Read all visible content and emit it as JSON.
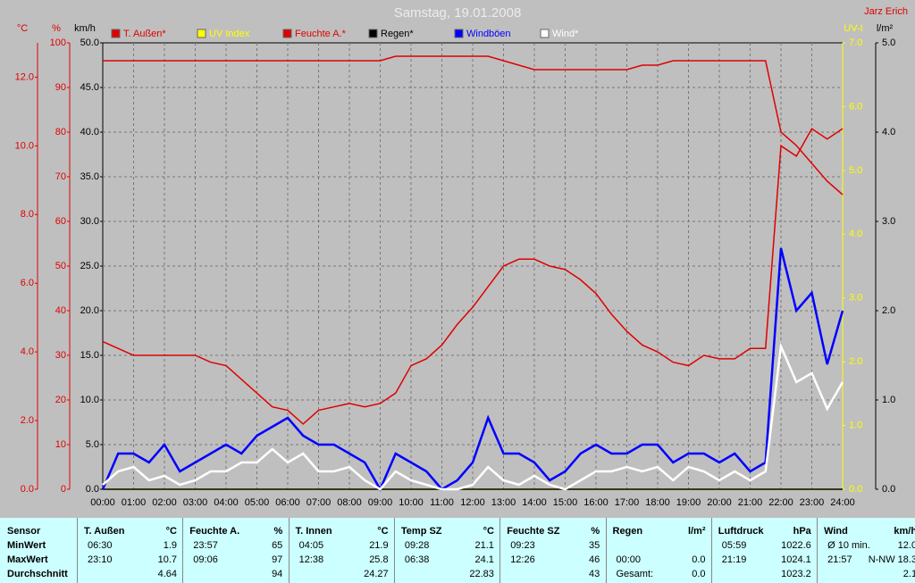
{
  "chart_data": {
    "type": "line",
    "title": "Samstag, 19.01.2008",
    "author": "Jarz Erich",
    "xlim": [
      0,
      24
    ],
    "xticks": [
      {
        "value": 0,
        "label": "00:00"
      },
      {
        "value": 1,
        "label": "01:00"
      },
      {
        "value": 2,
        "label": "02:00"
      },
      {
        "value": 3,
        "label": "03:00"
      },
      {
        "value": 4,
        "label": "04:00"
      },
      {
        "value": 5,
        "label": "05:00"
      },
      {
        "value": 6,
        "label": "06:00"
      },
      {
        "value": 7,
        "label": "07:00"
      },
      {
        "value": 8,
        "label": "08:00"
      },
      {
        "value": 9,
        "label": "09:00"
      },
      {
        "value": 10,
        "label": "10:00"
      },
      {
        "value": 11,
        "label": "11:00"
      },
      {
        "value": 12,
        "label": "12:00"
      },
      {
        "value": 13,
        "label": "13:00"
      },
      {
        "value": 14,
        "label": "14:00"
      },
      {
        "value": 15,
        "label": "15:00"
      },
      {
        "value": 16,
        "label": "16:00"
      },
      {
        "value": 17,
        "label": "17:00"
      },
      {
        "value": 18,
        "label": "18:00"
      },
      {
        "value": 19,
        "label": "19:00"
      },
      {
        "value": 20,
        "label": "20:00"
      },
      {
        "value": 21,
        "label": "21:00"
      },
      {
        "value": 22,
        "label": "22:00"
      },
      {
        "value": 23,
        "label": "23:00"
      },
      {
        "value": 24,
        "label": "24:00"
      }
    ],
    "axes": [
      {
        "unit": "°C",
        "color": "#e00000",
        "lim": [
          0,
          13
        ],
        "ticks": [
          {
            "value": 0,
            "label": "0.0"
          },
          {
            "value": 2,
            "label": "2.0"
          },
          {
            "value": 4,
            "label": "4.0"
          },
          {
            "value": 6,
            "label": "6.0"
          },
          {
            "value": 8,
            "label": "8.0"
          },
          {
            "value": 10,
            "label": "10.0"
          },
          {
            "value": 12,
            "label": "12.0"
          }
        ]
      },
      {
        "unit": "%",
        "color": "#e00000",
        "lim": [
          0,
          100
        ],
        "ticks": [
          0,
          10,
          20,
          30,
          40,
          50,
          60,
          70,
          80,
          90,
          100
        ]
      },
      {
        "unit": "km/h",
        "color": "#000000",
        "lim": [
          0,
          50
        ],
        "ticks": [
          {
            "value": 0,
            "label": "0.0"
          },
          {
            "value": 5,
            "label": "5.0"
          },
          {
            "value": 10,
            "label": "10.0"
          },
          {
            "value": 15,
            "label": "15.0"
          },
          {
            "value": 20,
            "label": "20.0"
          },
          {
            "value": 25,
            "label": "25.0"
          },
          {
            "value": 30,
            "label": "30.0"
          },
          {
            "value": 35,
            "label": "35.0"
          },
          {
            "value": 40,
            "label": "40.0"
          },
          {
            "value": 45,
            "label": "45.0"
          },
          {
            "value": 50,
            "label": "50.0"
          }
        ],
        "grid": true
      },
      {
        "unit": "UV-I",
        "color": "#ffff00",
        "lim": [
          0,
          7
        ],
        "ticks": [
          {
            "value": 0,
            "label": "0.0"
          },
          {
            "value": 1,
            "label": "1.0"
          },
          {
            "value": 2,
            "label": "2.0"
          },
          {
            "value": 3,
            "label": "3.0"
          },
          {
            "value": 4,
            "label": "4.0"
          },
          {
            "value": 5,
            "label": "5.0"
          },
          {
            "value": 6,
            "label": "6.0"
          },
          {
            "value": 7,
            "label": "7.0"
          }
        ]
      },
      {
        "unit": "l/m²",
        "color": "#000000",
        "lim": [
          0,
          5
        ],
        "ticks": [
          {
            "value": 0,
            "label": "0.0"
          },
          {
            "value": 1,
            "label": "1.0"
          },
          {
            "value": 2,
            "label": "2.0"
          },
          {
            "value": 3,
            "label": "3.0"
          },
          {
            "value": 4,
            "label": "4.0"
          },
          {
            "value": 5,
            "label": "5.0"
          }
        ]
      }
    ],
    "x": [
      0,
      0.5,
      1,
      1.5,
      2,
      2.5,
      3,
      3.5,
      4,
      4.5,
      5,
      5.5,
      6,
      6.5,
      7,
      7.5,
      8,
      8.5,
      9,
      9.5,
      10,
      10.5,
      11,
      11.5,
      12,
      12.5,
      13,
      13.5,
      14,
      14.5,
      15,
      15.5,
      16,
      16.5,
      17,
      17.5,
      18,
      18.5,
      19,
      19.5,
      20,
      20.5,
      21,
      21.5,
      22,
      22.5,
      23,
      23.5,
      24
    ],
    "series": [
      {
        "name": "T. Außen*",
        "color": "#e00000",
        "axis": 0,
        "values": [
          4.3,
          4.1,
          3.9,
          3.9,
          3.9,
          3.9,
          3.9,
          3.7,
          3.6,
          3.2,
          2.8,
          2.4,
          2.3,
          1.9,
          2.3,
          2.4,
          2.5,
          2.4,
          2.5,
          2.8,
          3.6,
          3.8,
          4.2,
          4.8,
          5.3,
          5.9,
          6.5,
          6.7,
          6.7,
          6.5,
          6.4,
          6.1,
          5.7,
          5.1,
          4.6,
          4.2,
          4.0,
          3.7,
          3.6,
          3.9,
          3.8,
          3.8,
          4.1,
          4.1,
          10.0,
          9.7,
          10.5,
          10.2,
          10.5
        ]
      },
      {
        "name": "UV Index",
        "color": "#ffff00",
        "axis": 3,
        "values": [
          0,
          0,
          0,
          0,
          0,
          0,
          0,
          0,
          0,
          0,
          0,
          0,
          0,
          0,
          0,
          0,
          0,
          0,
          0,
          0,
          0,
          0,
          0,
          0,
          0,
          0,
          0,
          0,
          0,
          0,
          0,
          0,
          0,
          0,
          0,
          0,
          0,
          0,
          0,
          0,
          0,
          0,
          0,
          0,
          0,
          0,
          0,
          0,
          0
        ]
      },
      {
        "name": "Feuchte A.*",
        "color": "#e00000",
        "axis": 1,
        "values": [
          96,
          96,
          96,
          96,
          96,
          96,
          96,
          96,
          96,
          96,
          96,
          96,
          96,
          96,
          96,
          96,
          96,
          96,
          96,
          97,
          97,
          97,
          97,
          97,
          97,
          97,
          96,
          95,
          94,
          94,
          94,
          94,
          94,
          94,
          94,
          95,
          95,
          96,
          96,
          96,
          96,
          96,
          96,
          96,
          80,
          77,
          73,
          69,
          66
        ]
      },
      {
        "name": "Regen*",
        "color": "#000000",
        "axis": 4,
        "values": [
          0,
          0,
          0,
          0,
          0,
          0,
          0,
          0,
          0,
          0,
          0,
          0,
          0,
          0,
          0,
          0,
          0,
          0,
          0,
          0,
          0,
          0,
          0,
          0,
          0,
          0,
          0,
          0,
          0,
          0,
          0,
          0,
          0,
          0,
          0,
          0,
          0,
          0,
          0,
          0,
          0,
          0,
          0,
          0,
          0,
          0,
          0,
          0,
          0
        ]
      },
      {
        "name": "Windböen",
        "color": "#0000ff",
        "axis": 2,
        "values": [
          0,
          4,
          4,
          3,
          5,
          2,
          3,
          4,
          5,
          4,
          6,
          7,
          8,
          6,
          5,
          5,
          4,
          3,
          0,
          4,
          3,
          2,
          0,
          1,
          3,
          8,
          4,
          4,
          3,
          1,
          2,
          4,
          5,
          4,
          4,
          5,
          5,
          3,
          4,
          4,
          3,
          4,
          2,
          3,
          27,
          20,
          22,
          14,
          20
        ]
      },
      {
        "name": "Wind*",
        "color": "#ffffff",
        "axis": 2,
        "values": [
          0.5,
          2,
          2.5,
          1,
          1.5,
          0.5,
          1,
          2,
          2,
          3,
          3,
          4.5,
          3,
          4,
          2,
          2,
          2.5,
          1,
          0,
          2,
          1,
          0.5,
          0,
          0,
          0.5,
          2.5,
          1,
          0.5,
          1.5,
          0.5,
          0,
          1,
          2,
          2,
          2.5,
          2,
          2.5,
          1,
          2.5,
          2,
          1,
          2,
          1,
          2,
          16,
          12,
          13,
          9,
          12
        ]
      }
    ]
  },
  "stats": {
    "row_labels": [
      "Sensor",
      "MinWert",
      "MaxWert",
      "Durchschnitt"
    ],
    "groups": [
      {
        "name": "T. Außen",
        "unit": "°C",
        "rows": [
          [
            "06:30",
            "1.9"
          ],
          [
            "23:10",
            "10.7"
          ],
          [
            null,
            "4.64"
          ]
        ]
      },
      {
        "name": "Feuchte A.",
        "unit": "%",
        "rows": [
          [
            "23:57",
            "65"
          ],
          [
            "09:06",
            "97"
          ],
          [
            null,
            "94"
          ]
        ]
      },
      {
        "name": "T. Innen",
        "unit": "°C",
        "rows": [
          [
            "04:05",
            "21.9"
          ],
          [
            "12:38",
            "25.8"
          ],
          [
            null,
            "24.27"
          ]
        ]
      },
      {
        "name": "Temp SZ",
        "unit": "°C",
        "rows": [
          [
            "09:28",
            "21.1"
          ],
          [
            "06:38",
            "24.1"
          ],
          [
            null,
            "22.83"
          ]
        ]
      },
      {
        "name": "Feuchte SZ",
        "unit": "%",
        "rows": [
          [
            "09:23",
            "35"
          ],
          [
            "12:26",
            "46"
          ],
          [
            null,
            "43"
          ]
        ]
      },
      {
        "name": "Regen",
        "unit": "l/m²",
        "rows": [
          [
            null,
            null
          ],
          [
            "00:00",
            "0.0"
          ],
          [
            "Gesamt:",
            "0.0"
          ]
        ]
      },
      {
        "name": "Luftdruck",
        "unit": "hPa",
        "rows": [
          [
            "05:59",
            "1022.6"
          ],
          [
            "21:19",
            "1024.1"
          ],
          [
            null,
            "1023.2"
          ]
        ]
      },
      {
        "name": "Wind",
        "unit": "km/h",
        "rows": [
          [
            "Ø 10 min.",
            "12.0"
          ],
          [
            "21:57",
            "N-NW 18.3"
          ],
          [
            null,
            "2.1"
          ]
        ]
      }
    ]
  }
}
